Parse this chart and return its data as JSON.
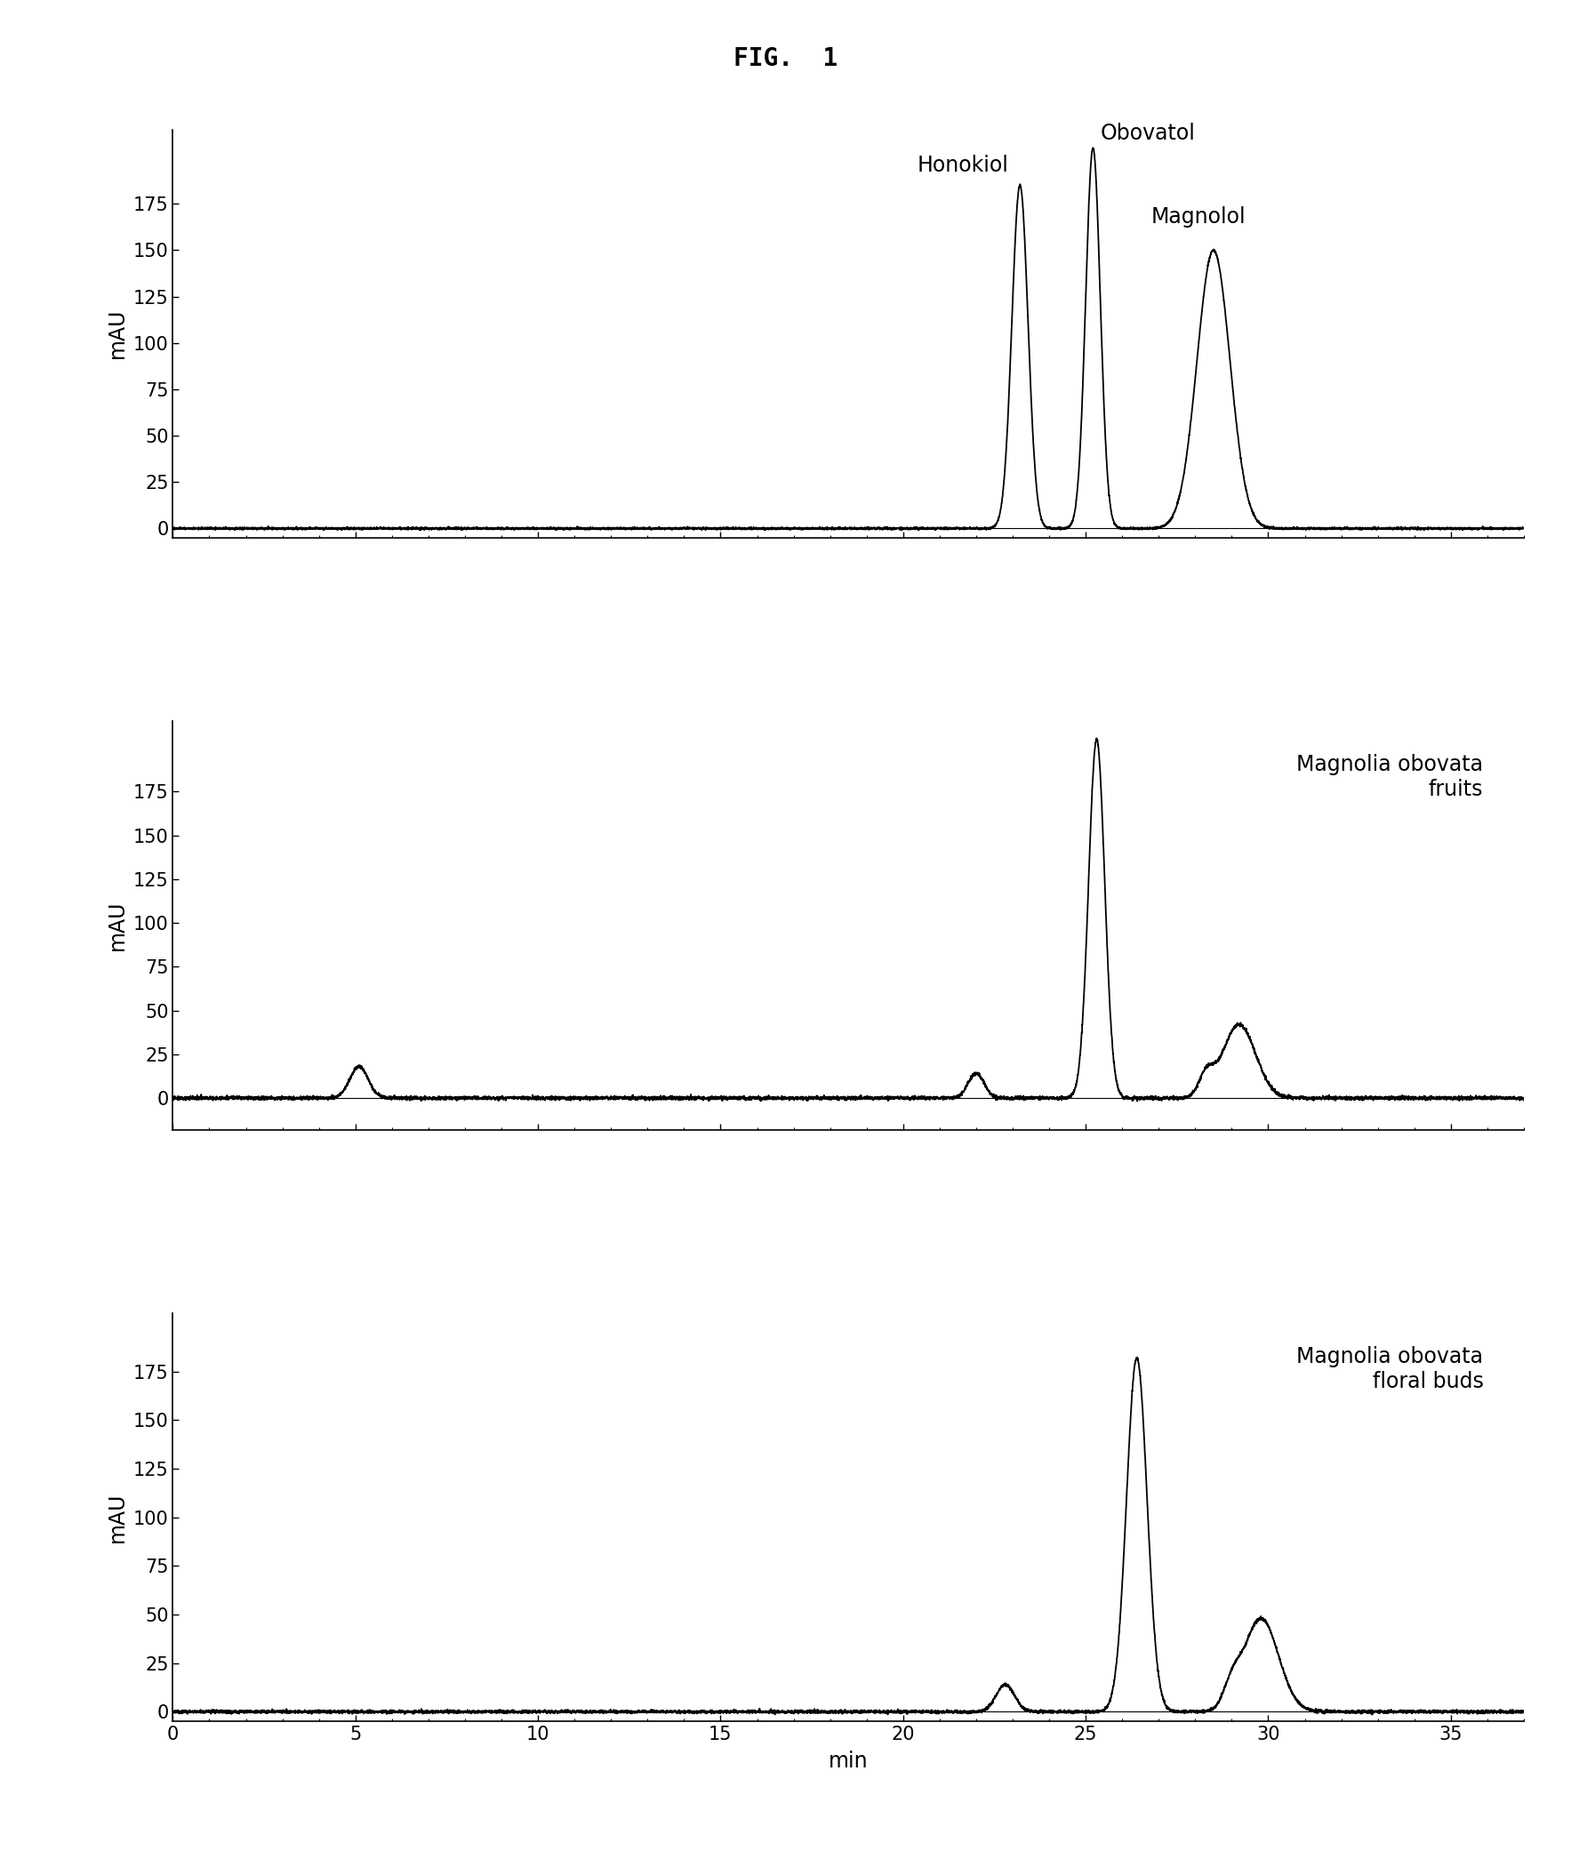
{
  "title": "FIG.  1",
  "title_fontsize": 20,
  "title_fontweight": "bold",
  "title_family": "monospace",
  "xlabel": "min",
  "ylabel": "mAU",
  "xlim": [
    0,
    37
  ],
  "ylim1": [
    -5,
    215
  ],
  "ylim2": [
    -18,
    215
  ],
  "ylim3": [
    -5,
    205
  ],
  "yticks": [
    0,
    25,
    50,
    75,
    100,
    125,
    150,
    175
  ],
  "xticks": [
    0,
    5,
    10,
    15,
    20,
    25,
    30,
    35
  ],
  "panel2_label": "Magnolia obovata\nfruits",
  "panel3_label": "Magnolia obovata\nfloral buds",
  "line_color": "#000000",
  "line_width": 1.3,
  "bg_color": "#ffffff",
  "font_size_labels": 17,
  "font_size_annot": 17,
  "font_size_axis": 15
}
